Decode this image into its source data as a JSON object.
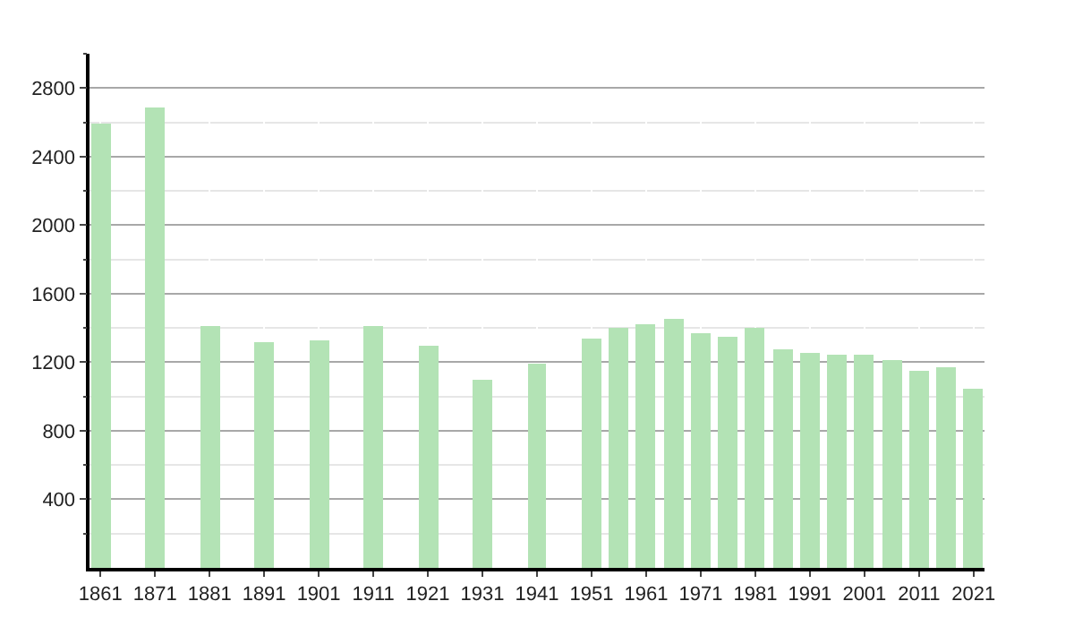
{
  "chart_data": {
    "type": "bar",
    "x": [
      1861,
      1871,
      1881,
      1891,
      1901,
      1911,
      1921,
      1931,
      1941,
      1951,
      1956,
      1961,
      1966,
      1971,
      1976,
      1981,
      1986,
      1991,
      1996,
      2001,
      2006,
      2011,
      2016,
      2021
    ],
    "values": [
      2590,
      2690,
      1410,
      1320,
      1330,
      1410,
      1300,
      1100,
      1190,
      1340,
      1400,
      1420,
      1450,
      1370,
      1350,
      1400,
      1280,
      1250,
      1240,
      1240,
      1210,
      1150,
      1170,
      1050
    ],
    "color": "#b3e3b5",
    "xlim": [
      1859,
      2023
    ],
    "xticks": [
      1861,
      1871,
      1881,
      1891,
      1901,
      1911,
      1921,
      1931,
      1941,
      1951,
      1961,
      1971,
      1981,
      1991,
      2001,
      2011,
      2021
    ],
    "ylim": [
      0,
      3000
    ],
    "yticks": [
      {
        "value": 200,
        "label": null
      },
      400,
      {
        "value": 600,
        "label": null
      },
      800,
      {
        "value": 1000,
        "label": null
      },
      1200,
      {
        "value": 1400,
        "label": null
      },
      1600,
      {
        "value": 1800,
        "label": null
      },
      2000,
      {
        "value": 2200,
        "label": null
      },
      2400,
      {
        "value": 2600,
        "label": null
      },
      2800,
      {
        "value": 3000,
        "label": null
      }
    ],
    "grid": true
  }
}
